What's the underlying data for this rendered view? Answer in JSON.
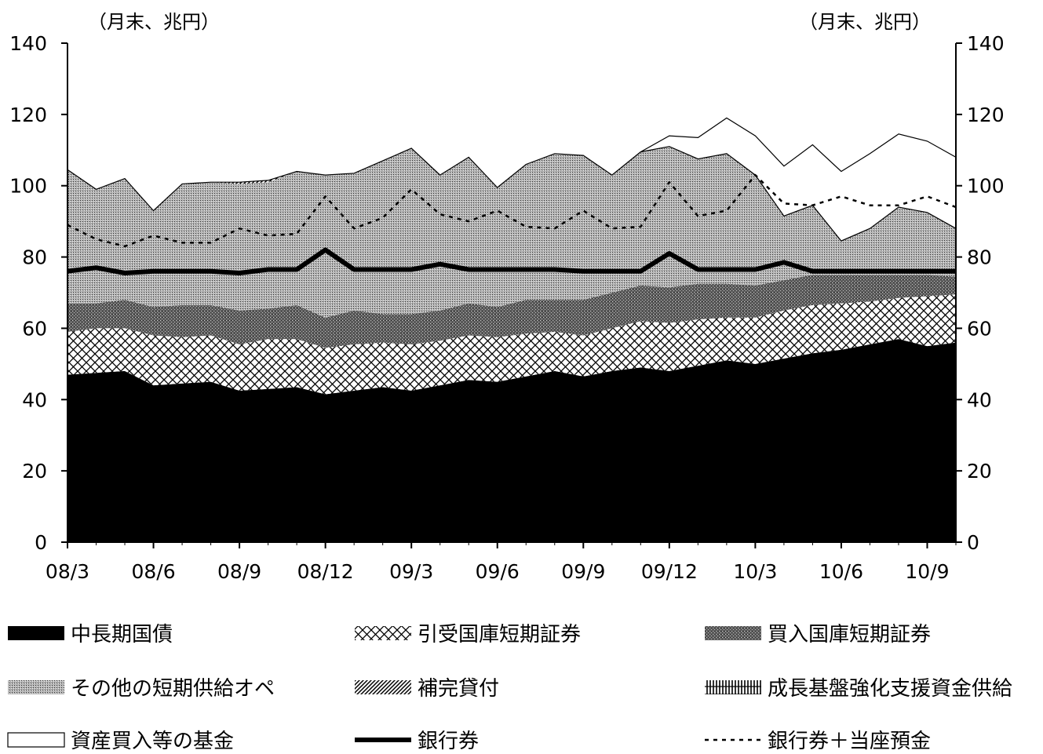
{
  "chart_data": {
    "type": "area",
    "stacked": true,
    "unit_left": "（月末、兆円）",
    "unit_right": "（月末、兆円）",
    "ylim": [
      0,
      140
    ],
    "yticks": [
      0,
      20,
      40,
      60,
      80,
      100,
      120,
      140
    ],
    "x_tick_labels": [
      "08/3",
      "08/6",
      "08/9",
      "08/12",
      "09/3",
      "09/6",
      "09/9",
      "09/12",
      "10/3",
      "10/6",
      "10/9"
    ],
    "x": [
      "08/3",
      "08/4",
      "08/5",
      "08/6",
      "08/7",
      "08/8",
      "08/9",
      "08/10",
      "08/11",
      "08/12",
      "09/1",
      "09/2",
      "09/3",
      "09/4",
      "09/5",
      "09/6",
      "09/7",
      "09/8",
      "09/9",
      "09/10",
      "09/11",
      "09/12",
      "10/1",
      "10/2",
      "10/3",
      "10/4",
      "10/5",
      "10/6",
      "10/7",
      "10/8",
      "10/9",
      "10/10"
    ],
    "series": [
      {
        "name": "中長期国債",
        "pattern": "solid-black",
        "values": [
          47,
          47.5,
          48,
          44,
          44.5,
          45,
          42.5,
          43,
          43.5,
          41.5,
          42.5,
          43.5,
          42.5,
          44,
          45.5,
          45,
          46.5,
          48,
          46.5,
          48,
          49,
          48,
          49.5,
          51,
          50,
          51.5,
          53,
          54,
          55.5,
          57,
          55,
          56
        ]
      },
      {
        "name": "引受国庫短期証券",
        "pattern": "crosshatch",
        "values": [
          12,
          12.5,
          12,
          14,
          13,
          13,
          13,
          14,
          13.5,
          13,
          13,
          12.5,
          13,
          12.5,
          12.5,
          12.5,
          12,
          11,
          11.5,
          12,
          13,
          13.5,
          13,
          12,
          13,
          13.5,
          13.5,
          13,
          12,
          11.5,
          14,
          13.5
        ]
      },
      {
        "name": "買入国庫短期証券",
        "pattern": "dense-gray",
        "values": [
          8,
          7,
          8,
          8,
          9,
          8.5,
          9.5,
          8.5,
          9.5,
          8.5,
          9.5,
          8,
          8.5,
          8.5,
          9,
          8.5,
          9.5,
          9,
          10,
          10,
          10,
          10,
          10,
          9.5,
          9,
          8.5,
          8.5,
          8,
          7.5,
          6.5,
          6,
          5
        ]
      },
      {
        "name": "その他の短期供給オペ",
        "pattern": "light-dots",
        "values": [
          37.5,
          32,
          34,
          27,
          34,
          34.5,
          35.5,
          35.5,
          37.5,
          40,
          38.5,
          43,
          46.5,
          38,
          41,
          33.5,
          38,
          41,
          40.5,
          33,
          37.5,
          39.5,
          35,
          36.5,
          31,
          18,
          19.5,
          9.5,
          13,
          19,
          17.5,
          13.5
        ]
      },
      {
        "name": "補完貸付",
        "pattern": "diagonal",
        "values": [
          0,
          0,
          0,
          0,
          0,
          0,
          0.5,
          0.5,
          0,
          0,
          0,
          0,
          0,
          0,
          0,
          0,
          0,
          0,
          0,
          0,
          0,
          0,
          0,
          0,
          0,
          0,
          0,
          0,
          0,
          0,
          0,
          0
        ]
      },
      {
        "name": "成長基盤強化支援資金供給",
        "pattern": "vertical-lines",
        "values": [
          0,
          0,
          0,
          0,
          0,
          0,
          0,
          0,
          0,
          0,
          0,
          0,
          0,
          0,
          0,
          0,
          0,
          0,
          0,
          0,
          0,
          0,
          0,
          0,
          0,
          0,
          0,
          0,
          0,
          0,
          0,
          0
        ]
      },
      {
        "name": "資産買入等の基金",
        "pattern": "white",
        "values": [
          0,
          0,
          0,
          0,
          0,
          0,
          0,
          0,
          0,
          0,
          0,
          0,
          0,
          0,
          0,
          0,
          0,
          0,
          0,
          0,
          0,
          3,
          6,
          10,
          11,
          14,
          17,
          19.5,
          21,
          20.5,
          20,
          20
        ]
      }
    ],
    "lines": [
      {
        "name": "銀行券",
        "style": "thick-solid",
        "values": [
          76,
          77,
          75.5,
          76,
          76,
          76,
          75.5,
          76.5,
          76.5,
          82,
          76.5,
          76.5,
          76.5,
          78,
          76.5,
          76.5,
          76.5,
          76.5,
          76,
          76,
          76,
          81,
          76.5,
          76.5,
          76.5,
          78.5,
          76,
          76,
          76,
          76,
          76,
          76
        ]
      },
      {
        "name": "銀行券＋当座預金",
        "style": "dotted",
        "values": [
          89,
          85,
          83,
          86,
          84,
          84,
          88,
          86,
          86.5,
          97,
          88,
          91,
          99,
          92,
          90,
          93,
          88.5,
          88,
          93,
          88,
          88.5,
          101,
          91.5,
          93,
          103,
          95,
          94.5,
          97,
          94.5,
          94.5,
          97,
          94
        ]
      }
    ]
  }
}
